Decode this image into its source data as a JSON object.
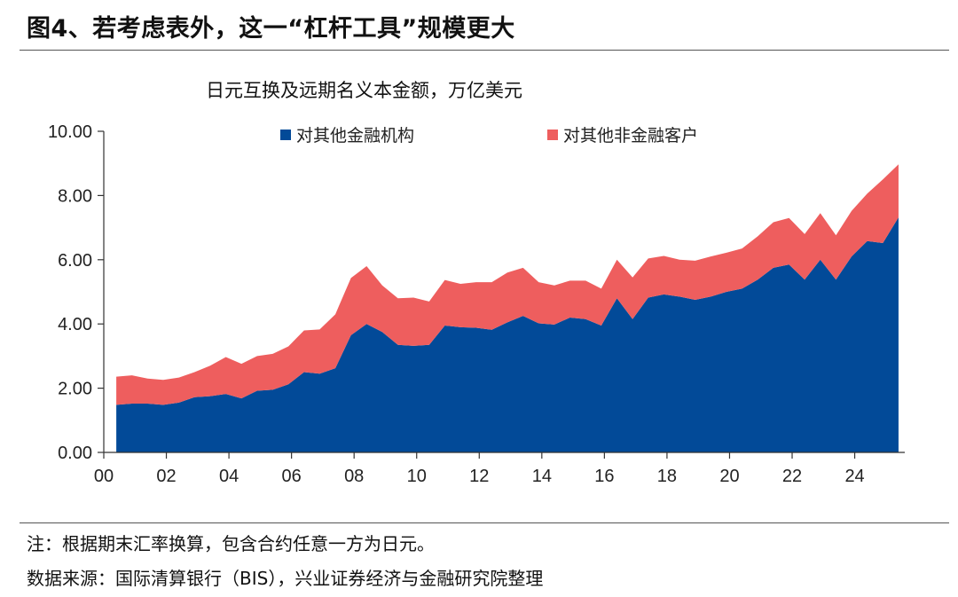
{
  "figure_title": "图4、若考虑表外，这一“杠杆工具”规模更大",
  "note": "注：根据期末汇率换算，包含合约任意一方为日元。",
  "source": "数据来源：国际清算银行（BIS），兴业证券经济与金融研究院整理",
  "chart_data": {
    "type": "area",
    "stacked": true,
    "title": "日元互换及远期名义本金额，万亿美元",
    "legend_position": "top",
    "xlim": [
      2000,
      2025.6
    ],
    "ylim": [
      0,
      10
    ],
    "x_ticks": [
      2000,
      2002,
      2004,
      2006,
      2008,
      2010,
      2012,
      2014,
      2016,
      2018,
      2020,
      2022,
      2024
    ],
    "x_tick_labels": [
      "00",
      "02",
      "04",
      "06",
      "08",
      "10",
      "12",
      "14",
      "16",
      "18",
      "20",
      "22",
      "24"
    ],
    "y_ticks": [
      0,
      2,
      4,
      6,
      8,
      10
    ],
    "y_tick_labels": [
      "0.00",
      "2.00",
      "4.00",
      "6.00",
      "8.00",
      "10.00"
    ],
    "grid": false,
    "colors": {
      "financial": "#024A98",
      "nonfinancial": "#EE5E5E"
    },
    "x": [
      2000.4,
      2000.9,
      2001.4,
      2001.9,
      2002.4,
      2002.9,
      2003.4,
      2003.9,
      2004.4,
      2004.9,
      2005.4,
      2005.9,
      2006.4,
      2006.9,
      2007.4,
      2007.9,
      2008.4,
      2008.9,
      2009.4,
      2009.9,
      2010.4,
      2010.9,
      2011.4,
      2011.9,
      2012.4,
      2012.9,
      2013.4,
      2013.9,
      2014.4,
      2014.9,
      2015.4,
      2015.9,
      2016.4,
      2016.9,
      2017.4,
      2017.9,
      2018.4,
      2018.9,
      2019.4,
      2019.9,
      2020.4,
      2020.9,
      2021.4,
      2021.9,
      2022.4,
      2022.9,
      2023.4,
      2023.9,
      2024.4,
      2024.9,
      2025.4
    ],
    "series": [
      {
        "name": "对其他金融机构",
        "values": [
          1.48,
          1.52,
          1.52,
          1.48,
          1.55,
          1.72,
          1.75,
          1.82,
          1.68,
          1.92,
          1.95,
          2.12,
          2.5,
          2.45,
          2.62,
          3.65,
          4.0,
          3.75,
          3.35,
          3.32,
          3.35,
          3.95,
          3.9,
          3.88,
          3.82,
          4.05,
          4.25,
          4.02,
          3.98,
          4.2,
          4.15,
          3.95,
          4.8,
          4.15,
          4.82,
          4.92,
          4.85,
          4.75,
          4.85,
          5.0,
          5.1,
          5.38,
          5.75,
          5.85,
          5.38,
          6.0,
          5.38,
          6.1,
          6.58,
          6.52,
          7.32
        ]
      },
      {
        "name": "对其他非金融客户",
        "values": [
          0.88,
          0.88,
          0.78,
          0.78,
          0.78,
          0.78,
          0.95,
          1.15,
          1.08,
          1.08,
          1.12,
          1.18,
          1.3,
          1.38,
          1.68,
          1.78,
          1.8,
          1.45,
          1.45,
          1.5,
          1.35,
          1.42,
          1.35,
          1.42,
          1.48,
          1.55,
          1.5,
          1.28,
          1.22,
          1.15,
          1.2,
          1.15,
          1.2,
          1.3,
          1.22,
          1.2,
          1.15,
          1.22,
          1.25,
          1.22,
          1.25,
          1.35,
          1.42,
          1.45,
          1.42,
          1.45,
          1.38,
          1.42,
          1.48,
          1.98,
          1.65
        ]
      }
    ]
  }
}
